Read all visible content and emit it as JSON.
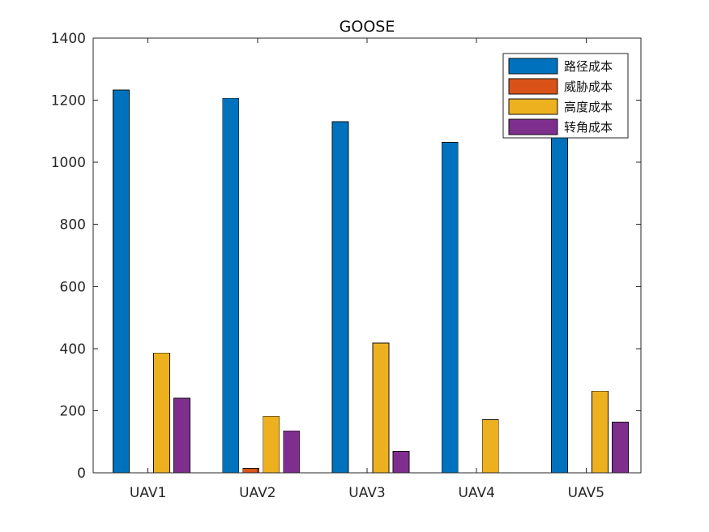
{
  "chart_data": {
    "type": "bar",
    "title": "GOOSE",
    "xlabel": "",
    "ylabel": "",
    "categories": [
      "UAV1",
      "UAV2",
      "UAV3",
      "UAV4",
      "UAV5"
    ],
    "ylim": [
      0,
      1400
    ],
    "yticks": [
      0,
      200,
      400,
      600,
      800,
      1000,
      1200,
      1400
    ],
    "grid": false,
    "legend_placement": "top-right",
    "series": [
      {
        "name": "路径成本",
        "color": "#0072BD",
        "values": [
          1233,
          1206,
          1131,
          1064,
          1090
        ]
      },
      {
        "name": "威胁成本",
        "color": "#D95319",
        "values": [
          0,
          14,
          0,
          0,
          0
        ]
      },
      {
        "name": "高度成本",
        "color": "#EDB120",
        "values": [
          386,
          182,
          418,
          171,
          263
        ]
      },
      {
        "name": "转角成本",
        "color": "#7E2F8E",
        "values": [
          240,
          135,
          69,
          0,
          163
        ]
      }
    ]
  }
}
